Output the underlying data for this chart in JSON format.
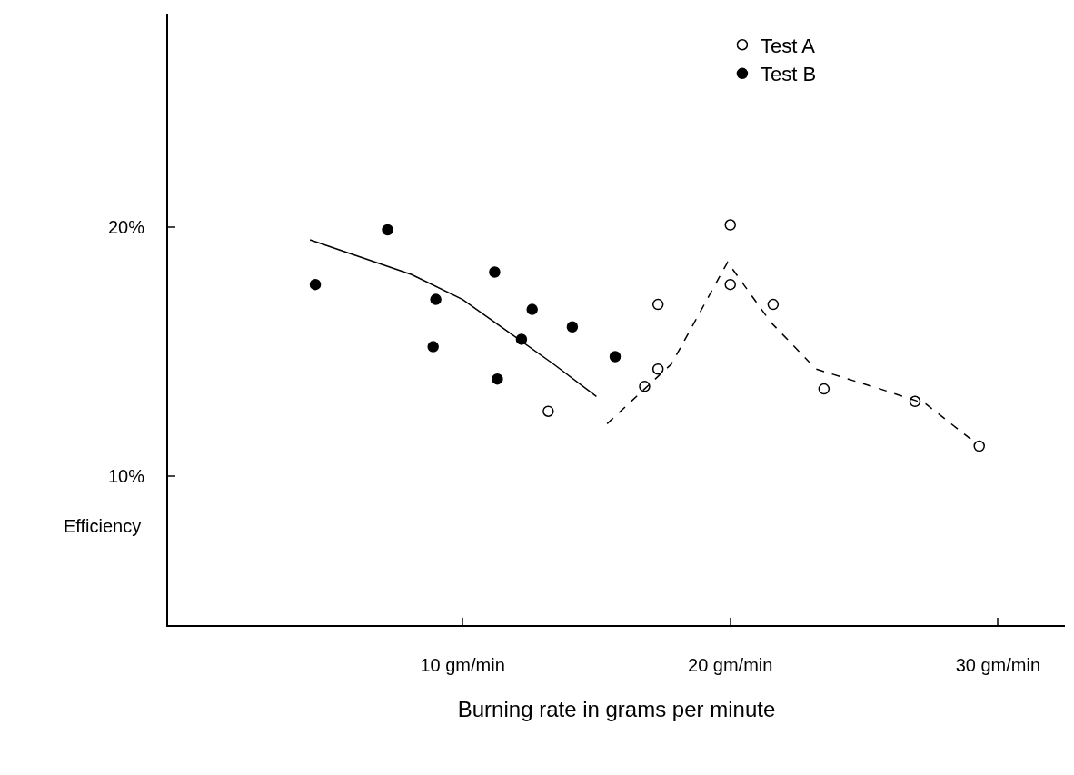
{
  "chart_data": {
    "type": "scatter",
    "xlabel": "Burning rate in grams per minute",
    "ylabel": "Efficiency",
    "xlim": [
      -1,
      32.5
    ],
    "ylim": [
      4,
      28.6
    ],
    "xticks": [
      {
        "value": 10,
        "label": "10 gm/min"
      },
      {
        "value": 20,
        "label": "20 gm/min"
      },
      {
        "value": 30,
        "label": "30 gm/min"
      }
    ],
    "yticks": [
      {
        "value": 10,
        "label": "10%"
      },
      {
        "value": 20,
        "label": "20%"
      }
    ],
    "legend": "top right",
    "series": [
      {
        "name": "Test A",
        "marker": "circle-open",
        "color": "#000000",
        "x": [
          13.2,
          16.8,
          17.3,
          17.3,
          20.0,
          20.0,
          21.6,
          23.5,
          26.9,
          29.3
        ],
        "values": [
          12.6,
          13.6,
          16.9,
          14.3,
          20.1,
          17.7,
          16.9,
          13.5,
          13.0,
          11.2
        ]
      },
      {
        "name": "Test B",
        "marker": "circle",
        "color": "#000000",
        "x": [
          4.5,
          7.2,
          9.0,
          8.9,
          11.2,
          11.3,
          12.6,
          12.2,
          14.1,
          15.7
        ],
        "values": [
          17.7,
          19.9,
          17.1,
          15.2,
          18.2,
          13.9,
          16.7,
          15.5,
          16.0,
          14.8
        ]
      },
      {
        "type": "line",
        "line_style": "solid",
        "color": "#000000",
        "x": [
          4.3,
          8.1,
          10,
          11.7,
          13.4,
          15
        ],
        "values": [
          19.5,
          18.1,
          17.1,
          15.8,
          14.5,
          13.2
        ]
      },
      {
        "type": "line",
        "line_style": "dashed",
        "color": "#000000",
        "x": [
          15.4,
          17.8,
          19.9,
          21.5,
          23.2,
          25.6,
          27.3,
          29.2
        ],
        "values": [
          12.1,
          14.5,
          18.6,
          16.2,
          14.3,
          13.5,
          12.9,
          11.3
        ]
      }
    ]
  }
}
